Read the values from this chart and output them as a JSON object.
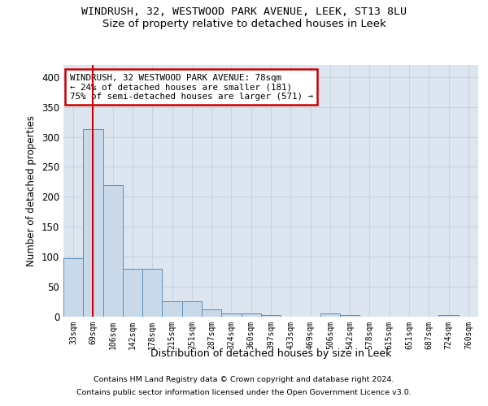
{
  "title1": "WINDRUSH, 32, WESTWOOD PARK AVENUE, LEEK, ST13 8LU",
  "title2": "Size of property relative to detached houses in Leek",
  "xlabel": "Distribution of detached houses by size in Leek",
  "ylabel": "Number of detached properties",
  "footer1": "Contains HM Land Registry data © Crown copyright and database right 2024.",
  "footer2": "Contains public sector information licensed under the Open Government Licence v3.0.",
  "annotation_line1": "WINDRUSH, 32 WESTWOOD PARK AVENUE: 78sqm",
  "annotation_line2": "← 24% of detached houses are smaller (181)",
  "annotation_line3": "75% of semi-detached houses are larger (571) →",
  "bar_color": "#c9d9ea",
  "bar_edge_color": "#5b8db8",
  "redline_color": "#cc0000",
  "annotation_box_color": "#cc0000",
  "grid_color": "#c8d4e4",
  "background_color": "#dde6f0",
  "fig_background": "#ffffff",
  "bin_labels": [
    "33sqm",
    "69sqm",
    "106sqm",
    "142sqm",
    "178sqm",
    "215sqm",
    "251sqm",
    "287sqm",
    "324sqm",
    "360sqm",
    "397sqm",
    "433sqm",
    "469sqm",
    "506sqm",
    "542sqm",
    "578sqm",
    "615sqm",
    "651sqm",
    "687sqm",
    "724sqm",
    "760sqm"
  ],
  "bar_values": [
    98,
    313,
    220,
    80,
    80,
    26,
    26,
    12,
    6,
    6,
    3,
    0,
    0,
    6,
    3,
    0,
    0,
    0,
    0,
    3,
    0
  ],
  "ylim": [
    0,
    420
  ],
  "yticks": [
    0,
    50,
    100,
    150,
    200,
    250,
    300,
    350,
    400
  ],
  "redline_x": 1.0,
  "figsize": [
    6.0,
    5.0
  ],
  "dpi": 100
}
